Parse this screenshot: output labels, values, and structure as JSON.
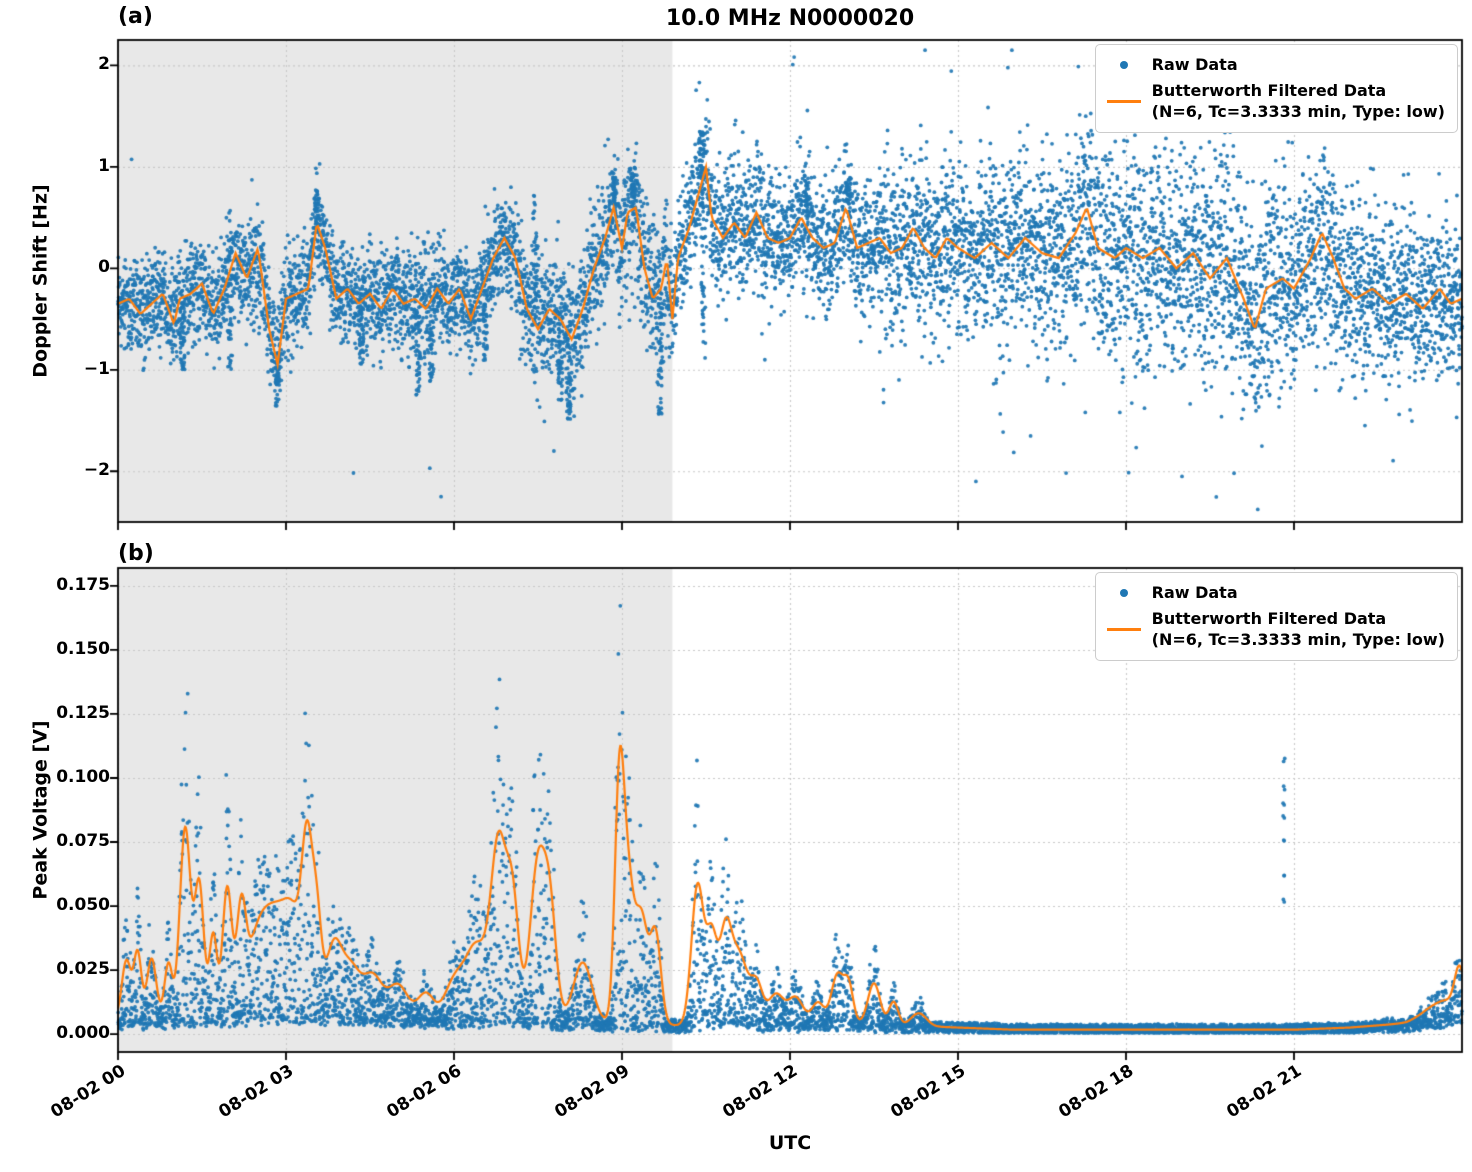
{
  "figure": {
    "title": "10.0 MHz N0000020",
    "xlabel": "UTC",
    "panel_a_tag": "(a)",
    "panel_b_tag": "(b)",
    "legend": {
      "raw_label": "Raw Data",
      "filtered_label": "Butterworth Filtered Data",
      "filtered_sublabel": "(N=6, Tc=3.3333 min, Type: low)"
    },
    "colors": {
      "raw": "#1f77b4",
      "filtered": "#ff7f0e",
      "shade": "#e8e8e8",
      "grid": "#c9c9c9"
    }
  },
  "chart_data": [
    {
      "type": "scatter",
      "panel": "a",
      "ylabel": "Doppler Shift [Hz]",
      "x_unit": "hours since 08-02 00:00 UTC",
      "xlim": [
        0,
        24
      ],
      "ylim": [
        -2.5,
        2.25
      ],
      "xticks": {
        "values": [
          0,
          3,
          6,
          9,
          12,
          15,
          18,
          21
        ],
        "labels": [
          "08-02 00",
          "08-02 03",
          "08-02 06",
          "08-02 09",
          "08-02 12",
          "08-02 15",
          "08-02 18",
          "08-02 21"
        ]
      },
      "yticks": {
        "values": [
          -2,
          -1,
          0,
          1,
          2
        ],
        "labels": [
          "−2",
          "−1",
          "0",
          "1",
          "2"
        ]
      },
      "shaded_region": {
        "x0": 0,
        "x1": 9.9
      },
      "filtered": {
        "x": [
          0,
          0.2,
          0.4,
          0.6,
          0.8,
          1.0,
          1.1,
          1.3,
          1.5,
          1.7,
          1.9,
          2.1,
          2.3,
          2.5,
          2.7,
          2.85,
          3.0,
          3.2,
          3.4,
          3.55,
          3.7,
          3.9,
          4.1,
          4.3,
          4.5,
          4.7,
          4.9,
          5.1,
          5.3,
          5.5,
          5.7,
          5.9,
          6.1,
          6.3,
          6.5,
          6.7,
          6.9,
          7.1,
          7.3,
          7.5,
          7.7,
          7.9,
          8.1,
          8.3,
          8.5,
          8.7,
          8.85,
          9.0,
          9.1,
          9.25,
          9.4,
          9.55,
          9.7,
          9.8,
          9.9,
          10.0,
          10.2,
          10.35,
          10.5,
          10.6,
          10.8,
          11.0,
          11.2,
          11.4,
          11.6,
          11.8,
          12.0,
          12.2,
          12.4,
          12.6,
          12.8,
          13.0,
          13.2,
          13.4,
          13.6,
          13.8,
          14.0,
          14.2,
          14.4,
          14.6,
          14.8,
          15.0,
          15.3,
          15.6,
          15.9,
          16.2,
          16.5,
          16.8,
          17.1,
          17.3,
          17.5,
          17.8,
          18.0,
          18.3,
          18.6,
          18.9,
          19.2,
          19.5,
          19.8,
          20.1,
          20.3,
          20.5,
          20.8,
          21.0,
          21.3,
          21.5,
          21.7,
          21.9,
          22.1,
          22.4,
          22.7,
          23.0,
          23.3,
          23.6,
          23.8,
          24.0
        ],
        "y": [
          -0.35,
          -0.3,
          -0.45,
          -0.35,
          -0.25,
          -0.55,
          -0.3,
          -0.25,
          -0.15,
          -0.45,
          -0.2,
          0.15,
          -0.1,
          0.2,
          -0.6,
          -0.95,
          -0.3,
          -0.25,
          -0.2,
          0.45,
          0.2,
          -0.3,
          -0.2,
          -0.35,
          -0.25,
          -0.4,
          -0.2,
          -0.35,
          -0.3,
          -0.4,
          -0.2,
          -0.35,
          -0.2,
          -0.5,
          -0.2,
          0.1,
          0.3,
          0.1,
          -0.4,
          -0.6,
          -0.4,
          -0.5,
          -0.7,
          -0.4,
          0.0,
          0.3,
          0.6,
          0.2,
          0.55,
          0.6,
          0.0,
          -0.3,
          -0.2,
          0.1,
          -0.5,
          0.1,
          0.4,
          0.7,
          1.0,
          0.5,
          0.3,
          0.45,
          0.3,
          0.55,
          0.3,
          0.25,
          0.3,
          0.5,
          0.3,
          0.2,
          0.25,
          0.6,
          0.2,
          0.25,
          0.3,
          0.15,
          0.2,
          0.4,
          0.2,
          0.1,
          0.3,
          0.2,
          0.1,
          0.25,
          0.1,
          0.3,
          0.15,
          0.1,
          0.35,
          0.6,
          0.2,
          0.1,
          0.2,
          0.1,
          0.2,
          0.0,
          0.15,
          -0.1,
          0.1,
          -0.3,
          -0.6,
          -0.2,
          -0.1,
          -0.2,
          0.1,
          0.35,
          0.1,
          -0.2,
          -0.3,
          -0.2,
          -0.35,
          -0.25,
          -0.4,
          -0.2,
          -0.35,
          -0.3
        ]
      },
      "scatter": {
        "n_points": 9000,
        "spread_x": [
          0,
          1,
          2,
          3,
          4,
          5,
          5.5,
          6,
          7,
          8,
          8.5,
          9,
          9.5,
          9.8,
          10,
          10.5,
          11,
          12,
          13,
          14,
          15,
          16,
          17,
          18,
          19,
          20,
          21,
          22,
          23,
          24
        ],
        "spread_y": [
          0.28,
          0.3,
          0.33,
          0.33,
          0.28,
          0.3,
          0.42,
          0.3,
          0.33,
          0.42,
          0.38,
          0.4,
          0.45,
          0.5,
          0.35,
          0.4,
          0.42,
          0.4,
          0.42,
          0.48,
          0.5,
          0.58,
          0.62,
          0.65,
          0.68,
          0.7,
          0.65,
          0.58,
          0.5,
          0.45
        ],
        "outlier_prob_x": [
          0,
          9.5,
          10,
          13,
          14,
          15,
          21,
          22,
          24
        ],
        "outlier_prob_p": [
          0.0015,
          0.0015,
          0.004,
          0.008,
          0.02,
          0.026,
          0.026,
          0.012,
          0.008
        ],
        "streaks": [
          [
            1.15,
            -1.0
          ],
          [
            2.0,
            -1.05
          ],
          [
            2.85,
            -1.15
          ],
          [
            3.55,
            0.78
          ],
          [
            4.35,
            -0.95
          ],
          [
            5.35,
            -1.25
          ],
          [
            5.6,
            -1.15
          ],
          [
            6.55,
            -0.95
          ],
          [
            7.45,
            0.85
          ],
          [
            7.9,
            -1.3
          ],
          [
            8.05,
            -1.5
          ],
          [
            8.85,
            0.9
          ],
          [
            9.2,
            0.95
          ],
          [
            9.68,
            -1.48
          ],
          [
            10.42,
            1.35
          ],
          [
            10.45,
            -0.9
          ],
          [
            12.3,
            0.95
          ],
          [
            13.05,
            0.9
          ]
        ]
      }
    },
    {
      "type": "scatter",
      "panel": "b",
      "ylabel": "Peak Voltage [V]",
      "xlabel": "UTC",
      "x_unit": "hours since 08-02 00:00 UTC",
      "xlim": [
        0,
        24
      ],
      "ylim": [
        -0.007,
        0.182
      ],
      "xticks": {
        "values": [
          0,
          3,
          6,
          9,
          12,
          15,
          18,
          21
        ],
        "labels": [
          "08-02 00",
          "08-02 03",
          "08-02 06",
          "08-02 09",
          "08-02 12",
          "08-02 15",
          "08-02 18",
          "08-02 21"
        ]
      },
      "yticks": {
        "values": [
          0,
          0.025,
          0.05,
          0.075,
          0.1,
          0.125,
          0.15,
          0.175
        ],
        "labels": [
          "0.000",
          "0.025",
          "0.050",
          "0.075",
          "0.100",
          "0.125",
          "0.150",
          "0.175"
        ]
      },
      "shaded_region": {
        "x0": 0,
        "x1": 9.9
      },
      "base": {
        "x": [
          0,
          1,
          2,
          3,
          4,
          5,
          6,
          7,
          8,
          9,
          10,
          11,
          12,
          13,
          14,
          15,
          16,
          18,
          20,
          21,
          22,
          23,
          23.5,
          24
        ],
        "y": [
          0.007,
          0.009,
          0.011,
          0.013,
          0.014,
          0.011,
          0.008,
          0.009,
          0.007,
          0.005,
          0.004,
          0.006,
          0.005,
          0.005,
          0.004,
          0.003,
          0.002,
          0.002,
          0.002,
          0.002,
          0.003,
          0.005,
          0.008,
          0.013
        ]
      },
      "spikes": [
        [
          0.15,
          0.06,
          0.045
        ],
        [
          0.35,
          0.05,
          0.05
        ],
        [
          0.6,
          0.06,
          0.045
        ],
        [
          0.9,
          0.05,
          0.04
        ],
        [
          1.2,
          0.07,
          0.145
        ],
        [
          1.45,
          0.06,
          0.1
        ],
        [
          1.7,
          0.05,
          0.06
        ],
        [
          1.95,
          0.06,
          0.095
        ],
        [
          2.2,
          0.06,
          0.07
        ],
        [
          2.5,
          0.15,
          0.055
        ],
        [
          2.85,
          0.15,
          0.06
        ],
        [
          3.15,
          0.12,
          0.055
        ],
        [
          3.38,
          0.07,
          0.115
        ],
        [
          3.55,
          0.06,
          0.065
        ],
        [
          3.85,
          0.1,
          0.045
        ],
        [
          4.15,
          0.12,
          0.03
        ],
        [
          4.55,
          0.12,
          0.025
        ],
        [
          5.0,
          0.12,
          0.02
        ],
        [
          5.5,
          0.1,
          0.016
        ],
        [
          6.0,
          0.12,
          0.025
        ],
        [
          6.4,
          0.15,
          0.055
        ],
        [
          6.8,
          0.1,
          0.13
        ],
        [
          7.05,
          0.08,
          0.085
        ],
        [
          7.5,
          0.1,
          0.12
        ],
        [
          7.72,
          0.08,
          0.075
        ],
        [
          8.3,
          0.12,
          0.045
        ],
        [
          8.95,
          0.06,
          0.168
        ],
        [
          9.1,
          0.08,
          0.11
        ],
        [
          9.35,
          0.08,
          0.08
        ],
        [
          9.6,
          0.07,
          0.07
        ],
        [
          10.35,
          0.08,
          0.108
        ],
        [
          10.6,
          0.07,
          0.065
        ],
        [
          10.85,
          0.08,
          0.07
        ],
        [
          11.1,
          0.1,
          0.05
        ],
        [
          11.4,
          0.08,
          0.03
        ],
        [
          11.75,
          0.1,
          0.022
        ],
        [
          12.1,
          0.1,
          0.02
        ],
        [
          12.5,
          0.08,
          0.016
        ],
        [
          12.85,
          0.08,
          0.038
        ],
        [
          13.05,
          0.06,
          0.028
        ],
        [
          13.5,
          0.08,
          0.032
        ],
        [
          13.85,
          0.06,
          0.018
        ],
        [
          14.3,
          0.1,
          0.01
        ],
        [
          23.6,
          0.2,
          0.01
        ],
        [
          23.95,
          0.06,
          0.028
        ]
      ],
      "outlier_columns": [
        {
          "x": 20.82,
          "ys": [
            0.107,
            0.096,
            0.09,
            0.085,
            0.075,
            0.061,
            0.052
          ]
        }
      ],
      "scatter": {
        "n_points": 6500
      }
    }
  ]
}
